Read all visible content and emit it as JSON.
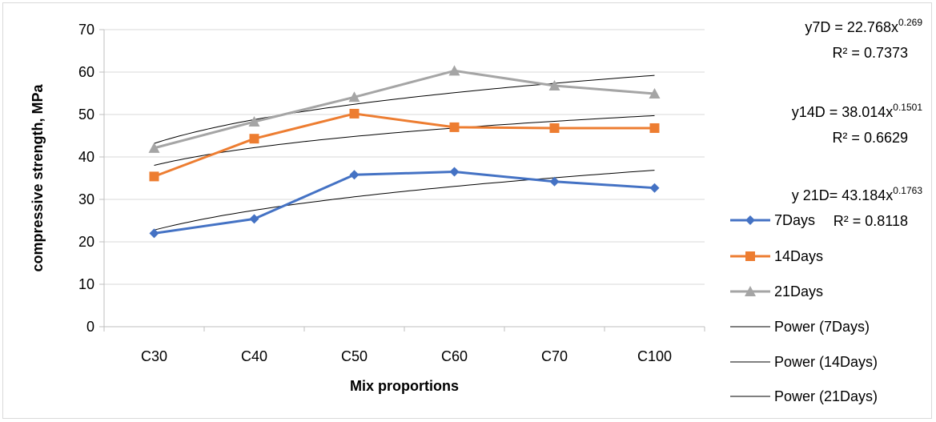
{
  "chart_data": {
    "type": "line",
    "xlabel": "Mix proportions",
    "ylabel": "compressive strength, MPa",
    "categories": [
      "C30",
      "C40",
      "C50",
      "C60",
      "C70",
      "C100"
    ],
    "ylim": [
      0,
      70
    ],
    "yticks": [
      "0",
      "10",
      "20",
      "30",
      "40",
      "50",
      "60",
      "70"
    ],
    "grid": true,
    "legend_position": "right",
    "series": [
      {
        "name": "7Days",
        "values": [
          22.0,
          25.4,
          35.8,
          36.5,
          34.2,
          32.7
        ],
        "color": "#4472C4",
        "marker": "diamond"
      },
      {
        "name": "14Days",
        "values": [
          35.4,
          44.3,
          50.2,
          47.0,
          46.8,
          46.8
        ],
        "color": "#ED7D31",
        "marker": "square"
      },
      {
        "name": "21Days",
        "values": [
          42.1,
          48.3,
          54.1,
          60.3,
          56.8,
          54.9
        ],
        "color": "#A5A5A5",
        "marker": "triangle"
      }
    ],
    "trendlines": [
      {
        "name": "Power (7Days)",
        "type": "power",
        "a": 22.768,
        "b": 0.269,
        "color": "#000000"
      },
      {
        "name": "Power (14Days)",
        "type": "power",
        "a": 38.014,
        "b": 0.1501,
        "color": "#000000"
      },
      {
        "name": "Power (21Days)",
        "type": "power",
        "a": 43.184,
        "b": 0.1763,
        "color": "#000000"
      }
    ],
    "equations": [
      {
        "eq_main": "y7D = 22.768x",
        "eq_sup": "0.269",
        "r2": "R² = 0.7373"
      },
      {
        "eq_main": "y14D = 38.014x",
        "eq_sup": "0.1501",
        "r2": "R² = 0.6629"
      },
      {
        "eq_main": "y 21D= 43.184x",
        "eq_sup": "0.1763",
        "r2": "R² = 0.8118"
      }
    ]
  }
}
